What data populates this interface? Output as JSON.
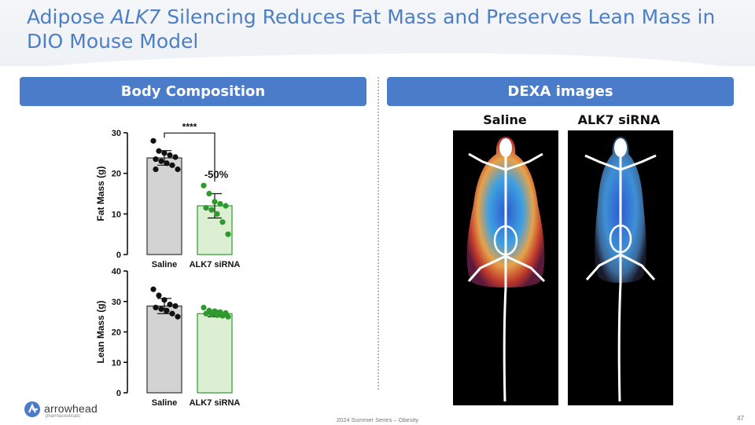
{
  "slide": {
    "title_pre": "Adipose ",
    "title_gene": "ALK7",
    "title_post": " Silencing Reduces Fat Mass and Preserves Lean Mass in DIO Mouse Model",
    "footer": "2024 Summer Series – Obesity",
    "page_number": "47",
    "logo_text": "arrowhead",
    "logo_sub": "pharmaceuticals"
  },
  "sections": {
    "left_header": "Body Composition",
    "right_header": "DEXA images"
  },
  "dexa": {
    "labels": [
      "Saline",
      "ALK7 siRNA"
    ]
  },
  "colors": {
    "header_blue": "#4a7cc9",
    "title_blue": "#4d7fc4",
    "saline_bar": "#d3d3d3",
    "saline_dot": "#111111",
    "alk7_bar": "#dcefd2",
    "alk7_dot": "#2e9a2e"
  },
  "chart_data": [
    {
      "type": "bar",
      "categories": [
        "Saline",
        "ALK7 siRNA"
      ],
      "values": [
        23.8,
        12.0
      ],
      "error": [
        1.8,
        3.0
      ],
      "points": [
        [
          28,
          25.5,
          25,
          24.5,
          24,
          23.5,
          23,
          22.5,
          22,
          21,
          21
        ],
        [
          17,
          15,
          13,
          12.5,
          12,
          11.5,
          11,
          10,
          8,
          5
        ]
      ],
      "ylabel": "Fat Mass (g)",
      "ylim": [
        0,
        30
      ],
      "yticks": [
        0,
        10,
        20,
        30
      ],
      "significance": "****",
      "annotation": "-50%"
    },
    {
      "type": "bar",
      "categories": [
        "Saline",
        "ALK7 siRNA"
      ],
      "values": [
        28.5,
        26.0
      ],
      "error": [
        2.5,
        1.0
      ],
      "points": [
        [
          34,
          32,
          30.5,
          29,
          28.5,
          28,
          27.5,
          27,
          26,
          25
        ],
        [
          28,
          27,
          26.8,
          26.5,
          26.2,
          26,
          25.8,
          25.5,
          25.3,
          25
        ]
      ],
      "ylabel": "Lean Mass (g)",
      "ylim": [
        0,
        40
      ],
      "yticks": [
        0,
        10,
        20,
        30,
        40
      ]
    }
  ]
}
